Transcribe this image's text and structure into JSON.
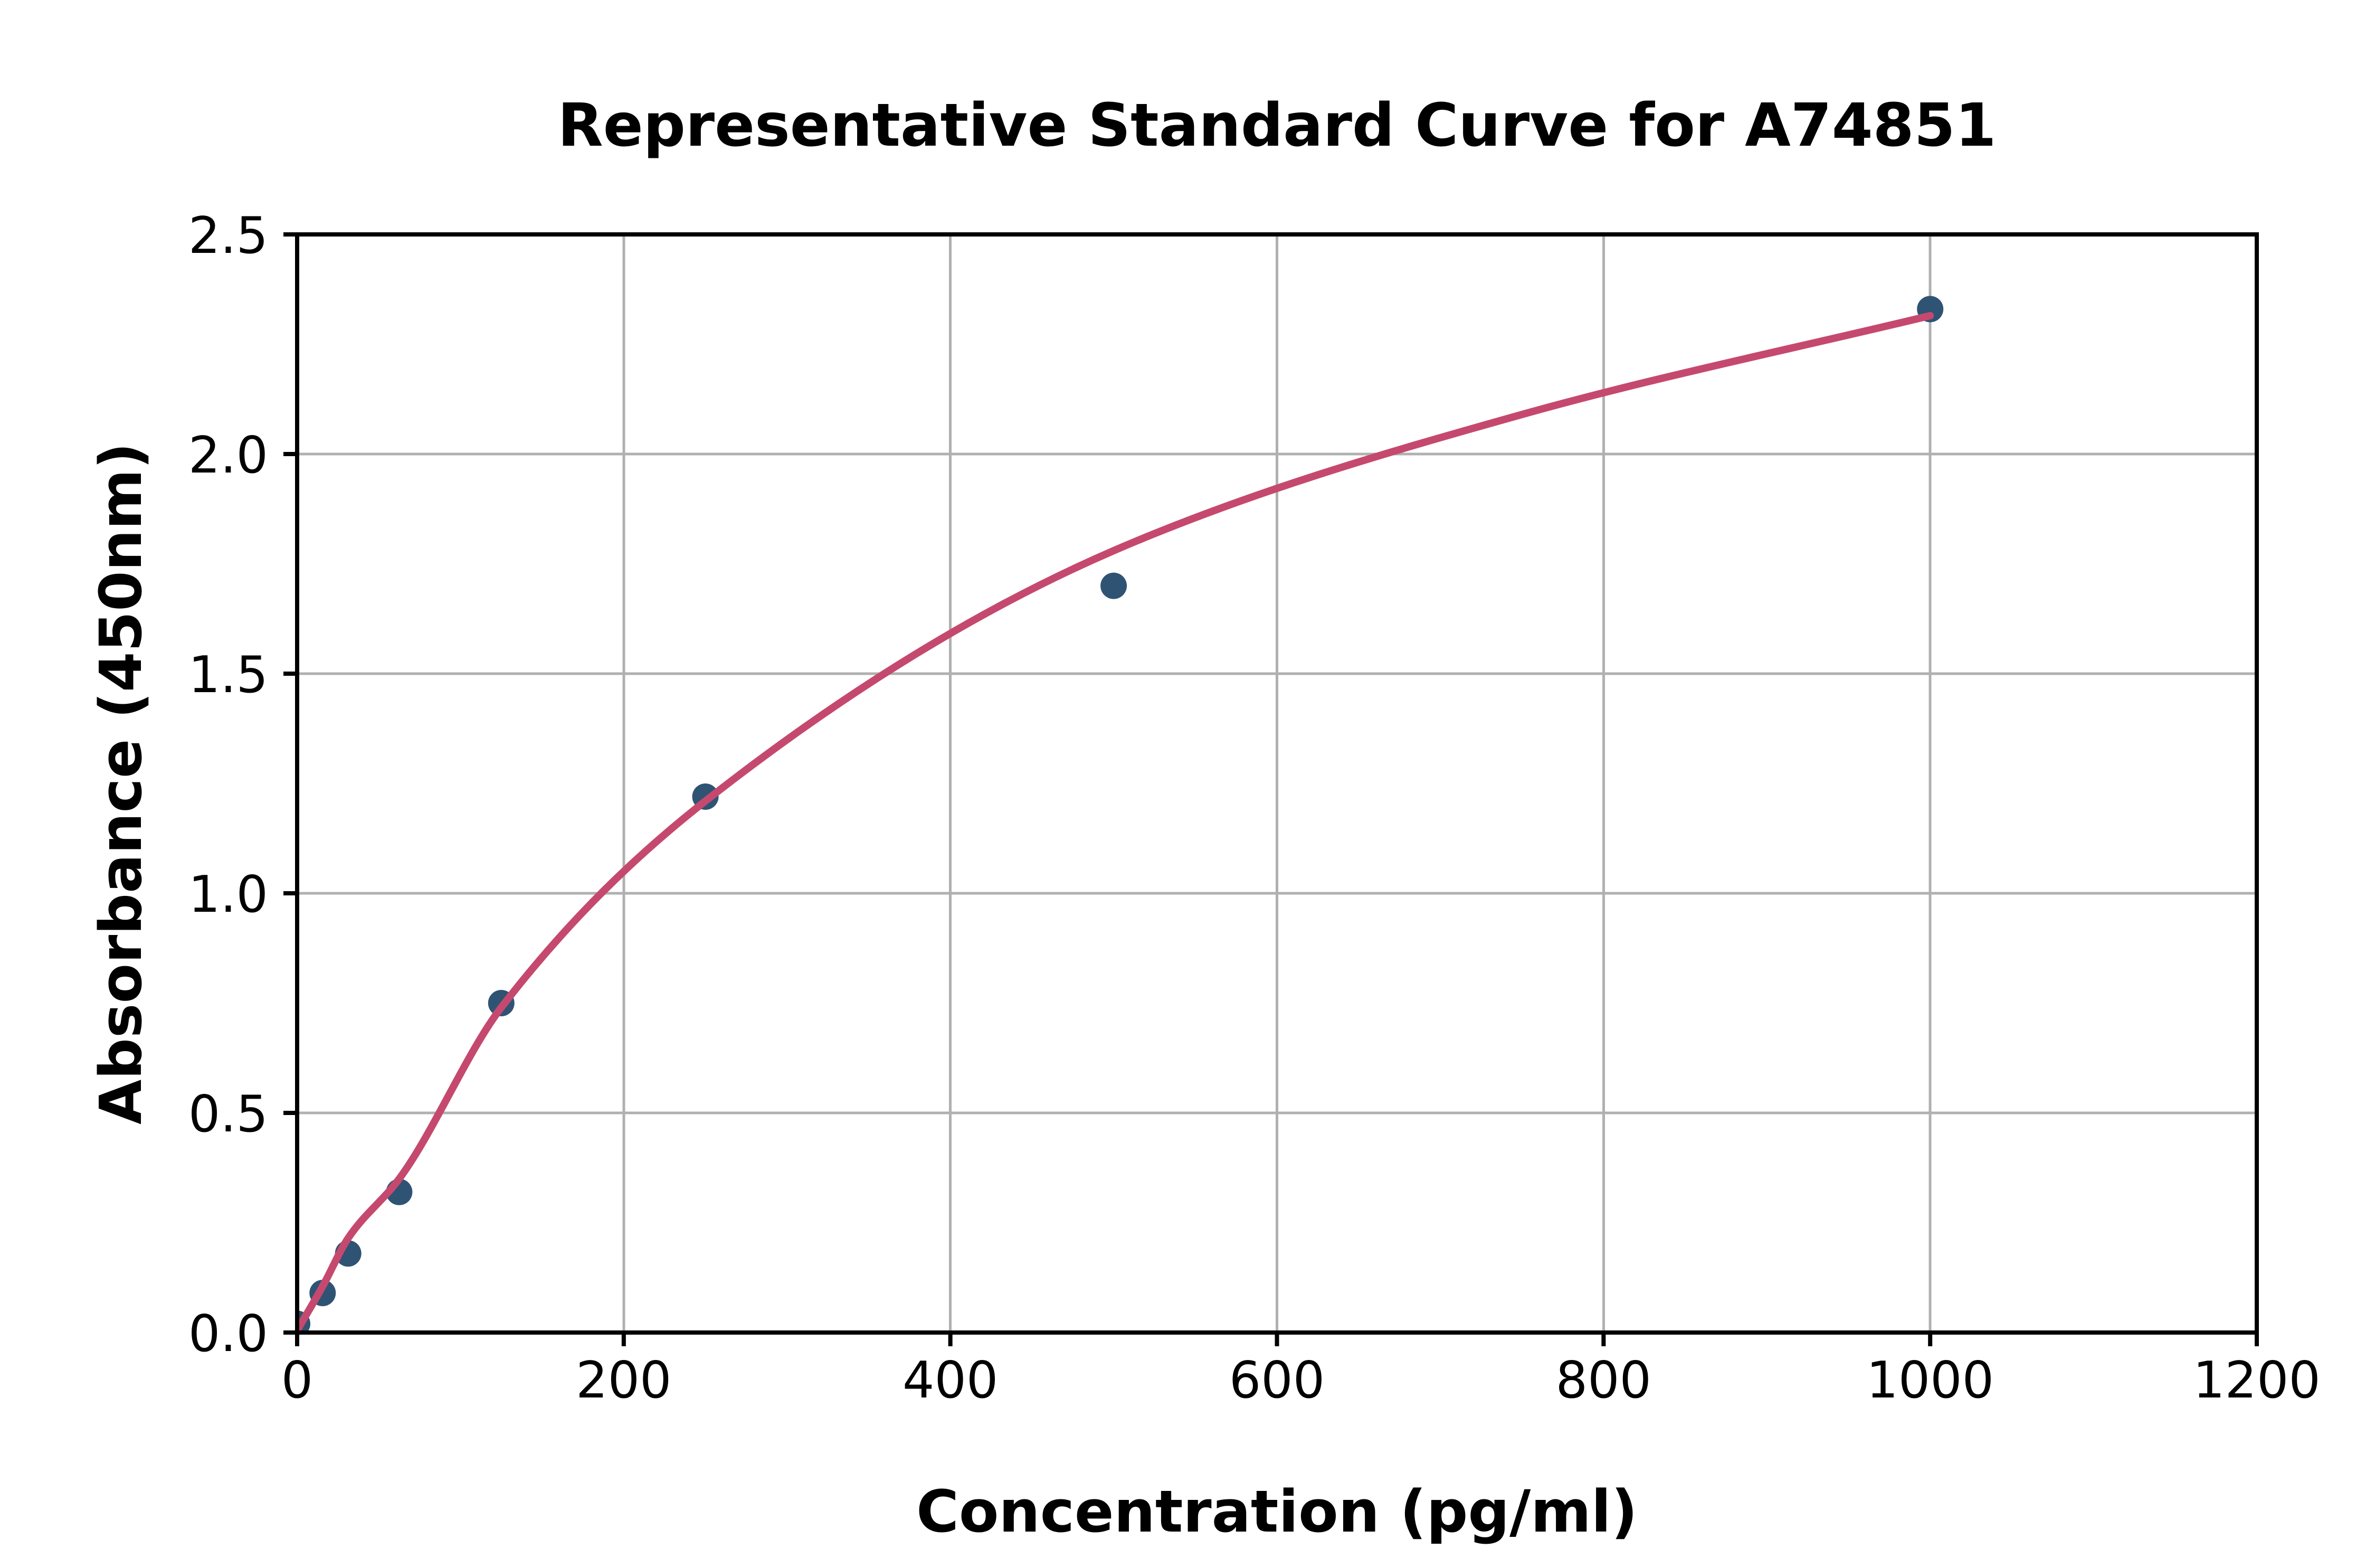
{
  "chart_data": {
    "type": "scatter",
    "title": "Representative Standard Curve for A74851",
    "xlabel": "Concentration (pg/ml)",
    "ylabel": "Absorbance (450nm)",
    "xlim": [
      0,
      1200
    ],
    "ylim": [
      0,
      2.5
    ],
    "x_ticks": [
      0,
      200,
      400,
      600,
      800,
      1000,
      1200
    ],
    "x_tick_labels": [
      "0",
      "200",
      "400",
      "600",
      "800",
      "1000",
      "1200"
    ],
    "y_ticks": [
      0,
      0.5,
      1.0,
      1.5,
      2.0,
      2.5
    ],
    "y_tick_labels": [
      "0.0",
      "0.5",
      "1.0",
      "1.5",
      "2.0",
      "2.5"
    ],
    "grid": true,
    "legend_position": "none",
    "series": [
      {
        "name": "standard-points",
        "type": "scatter",
        "points": [
          {
            "concentration_pg_ml": 0,
            "absorbance": 0.02
          },
          {
            "concentration_pg_ml": 15.6,
            "absorbance": 0.09
          },
          {
            "concentration_pg_ml": 31.25,
            "absorbance": 0.18
          },
          {
            "concentration_pg_ml": 62.5,
            "absorbance": 0.32
          },
          {
            "concentration_pg_ml": 125,
            "absorbance": 0.75
          },
          {
            "concentration_pg_ml": 250,
            "absorbance": 1.22
          },
          {
            "concentration_pg_ml": 500,
            "absorbance": 1.7
          },
          {
            "concentration_pg_ml": 1000,
            "absorbance": 2.33
          }
        ]
      },
      {
        "name": "fitted-curve",
        "type": "line",
        "anchors": [
          [
            0,
            0.005
          ],
          [
            15.6,
            0.105
          ],
          [
            31.25,
            0.215
          ],
          [
            62.5,
            0.35
          ],
          [
            125,
            0.74
          ],
          [
            250,
            1.21
          ],
          [
            500,
            1.78
          ],
          [
            750,
            2.09
          ],
          [
            1000,
            2.315
          ]
        ]
      }
    ],
    "colors": {
      "marker": "#2F5373",
      "line": "#C5496F",
      "grid": "#B0B0B0",
      "spine": "#000000",
      "text": "#000000",
      "background": "#FFFFFF"
    }
  }
}
